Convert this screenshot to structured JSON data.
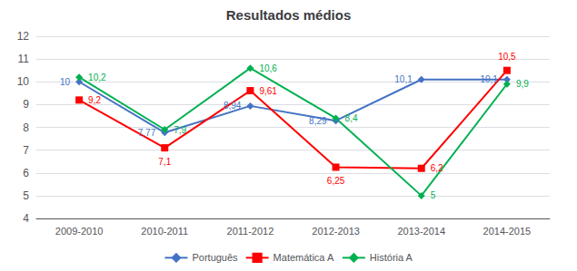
{
  "chart_data": {
    "type": "line",
    "title": "Resultados médios",
    "categories": [
      "2009-2010",
      "2010-2011",
      "2011-2012",
      "2012-2013",
      "2013-2014",
      "2014-2015"
    ],
    "series": [
      {
        "name": "Português",
        "color": "#4472C4",
        "marker": "diamond",
        "values": [
          10,
          7.77,
          8.94,
          8.29,
          10.1,
          10.1
        ],
        "value_labels": [
          "10",
          "7,77",
          "8,94",
          "8,29",
          "10,1",
          "10,1"
        ]
      },
      {
        "name": "Matemática A",
        "color": "#FF0000",
        "marker": "square",
        "values": [
          9.2,
          7.1,
          9.61,
          6.25,
          6.2,
          10.5
        ],
        "value_labels": [
          "9,2",
          "7,1",
          "9,61",
          "6,25",
          "6,2",
          "10,5"
        ]
      },
      {
        "name": "História A",
        "color": "#00B050",
        "marker": "diamond",
        "values": [
          10.2,
          7.9,
          10.6,
          8.4,
          5,
          9.9
        ],
        "value_labels": [
          "10,2",
          "7,9",
          "10,6",
          "8,4",
          "5",
          "9,9"
        ]
      }
    ],
    "ylim": [
      4,
      12
    ],
    "yticks": [
      4,
      5,
      6,
      7,
      8,
      9,
      10,
      11,
      12
    ],
    "grid": true,
    "legend": "bottom",
    "data_labels": true
  }
}
